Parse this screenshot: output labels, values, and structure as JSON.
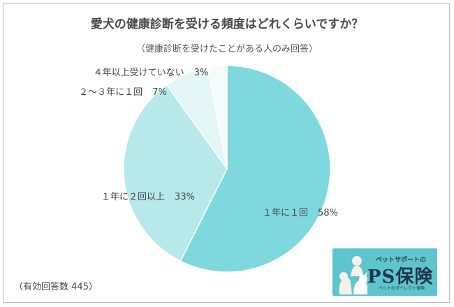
{
  "chart_data": {
    "type": "pie",
    "title": "愛犬の健康診断を受ける頻度はどれくらいですか？",
    "subtitle": "（健康診断を受けたことがある人のみ回答）",
    "slices": [
      {
        "label": "１年に１回",
        "value": 58,
        "value_label": "58%",
        "color": "#7fd8de"
      },
      {
        "label": "１年に２回以上",
        "value": 33,
        "value_label": "33%",
        "color": "#b7e8ea"
      },
      {
        "label": "２〜３年に１回",
        "value": 7,
        "value_label": "7%",
        "color": "#e4f5f6"
      },
      {
        "label": "４年以上受けていない",
        "value": 3,
        "value_label": "3%",
        "color": "#f3fbfb"
      }
    ],
    "start": "12 o'clock",
    "direction": "clockwise",
    "footnote": "（有効回答数 445）"
  },
  "logo": {
    "tagline": "ペットサポートの",
    "name": "PS保険",
    "sub": "ペットのダイレクト保険",
    "background": "#5fc5cc"
  }
}
